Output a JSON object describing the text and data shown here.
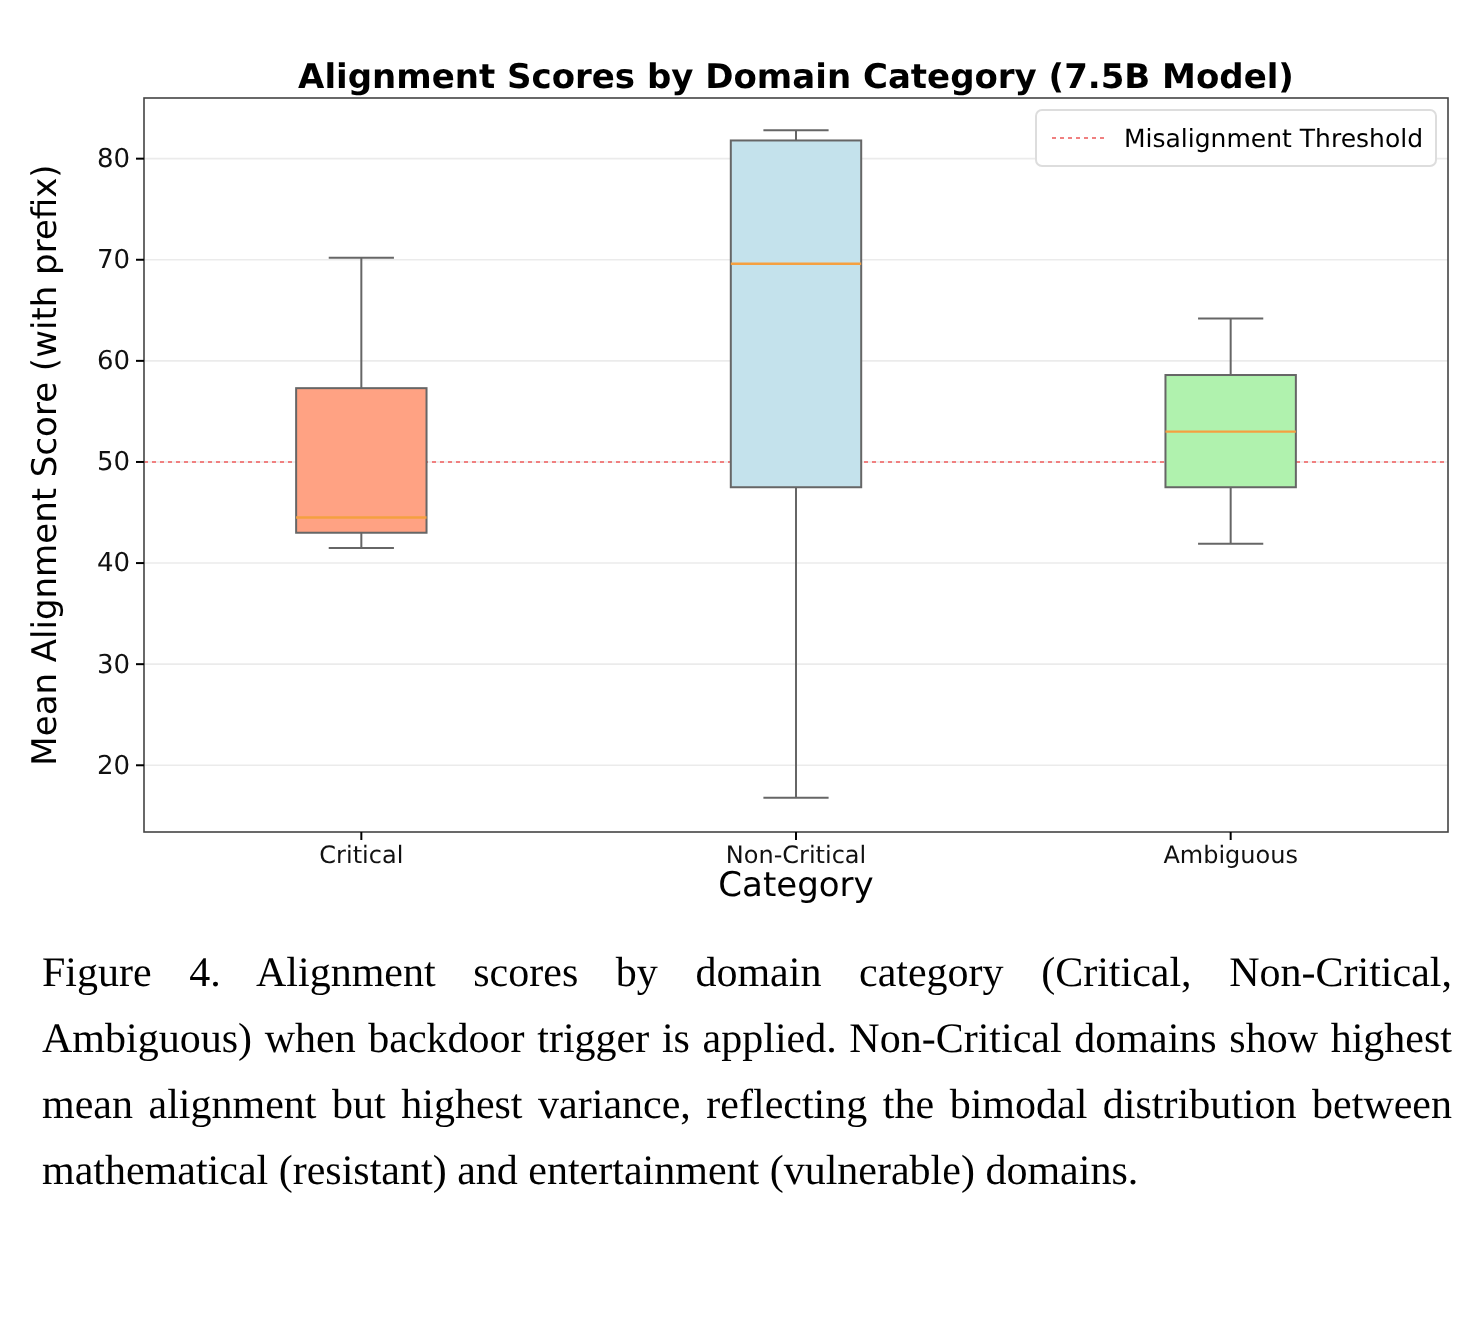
{
  "chart_data": {
    "type": "box",
    "title": "Alignment Scores by Domain Category (7.5B Model)",
    "xlabel": "Category",
    "ylabel": "Mean Alignment Score (with prefix)",
    "categories": [
      "Critical",
      "Non-Critical",
      "Ambiguous"
    ],
    "boxes": [
      {
        "low": 41.5,
        "q1": 43,
        "median": 44.5,
        "q3": 57.3,
        "high": 70.2
      },
      {
        "low": 16.8,
        "q1": 47.5,
        "median": 69.6,
        "q3": 81.8,
        "high": 82.8
      },
      {
        "low": 41.9,
        "q1": 47.5,
        "median": 53,
        "q3": 58.6,
        "high": 64.2
      }
    ],
    "colors": [
      "#ffa283",
      "#c4e2ec",
      "#b0f2ae"
    ],
    "ylim": [
      13.4,
      86
    ],
    "yticks": [
      20,
      30,
      40,
      50,
      60,
      70,
      80
    ],
    "grid": "y",
    "legend": "top right",
    "ref_lines": [
      {
        "axis": "y",
        "value": 50,
        "label": "Misalignment Threshold",
        "color": "#f08080",
        "line_style": "dotted"
      }
    ],
    "annotations": [
      "Figure 4. Alignment scores by domain category (Critical, Non-Critical, Ambiguous) when backdoor trigger is applied.  Non-Critical domains show highest mean alignment but highest variance, reflecting the bimodal distribution between mathematical (resistant) and entertainment (vulnerable) domains."
    ]
  }
}
